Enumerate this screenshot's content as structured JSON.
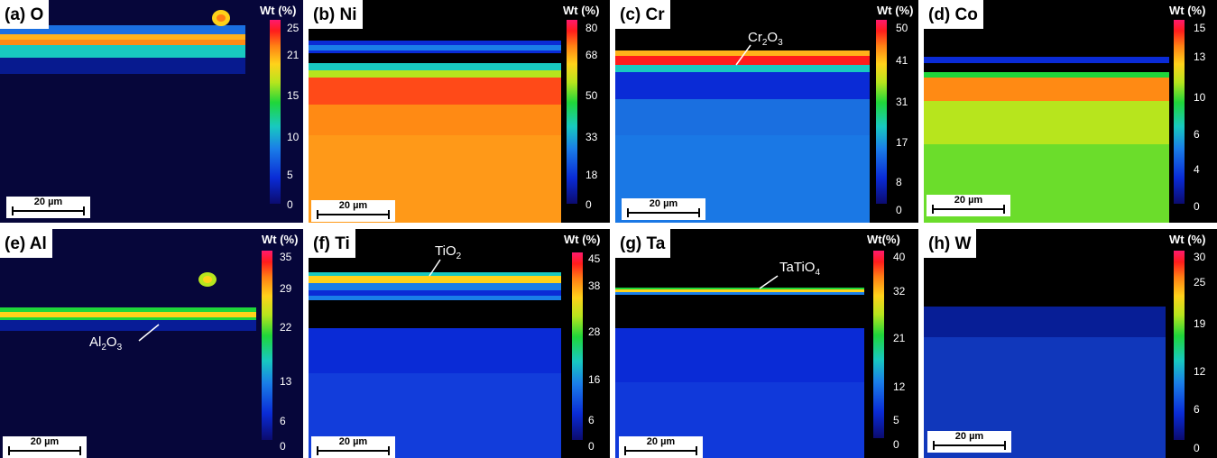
{
  "colorbar_title": "Wt (%)",
  "colorbar_title_g": "Wt(%)",
  "scale_label": "20 µm",
  "panels": [
    {
      "label": "(a) O",
      "ticks": [
        "25",
        "21",
        "15",
        "10",
        "5",
        "0"
      ]
    },
    {
      "label": "(b) Ni",
      "ticks": [
        "80",
        "68",
        "50",
        "33",
        "18",
        "0"
      ]
    },
    {
      "label": "(c) Cr",
      "ticks": [
        "50",
        "41",
        "31",
        "17",
        "8",
        "0"
      ]
    },
    {
      "label": "(d) Co",
      "ticks": [
        "15",
        "13",
        "10",
        "6",
        "4",
        "0"
      ]
    },
    {
      "label": "(e) Al",
      "ticks": [
        "35",
        "29",
        "22",
        "13",
        "6",
        "0"
      ]
    },
    {
      "label": "(f) Ti",
      "ticks": [
        "45",
        "38",
        "28",
        "16",
        "6",
        "0"
      ]
    },
    {
      "label": "(g) Ta",
      "ticks": [
        "40",
        "32",
        "21",
        "12",
        "5",
        "0"
      ]
    },
    {
      "label": "(h) W",
      "ticks": [
        "30",
        "25",
        "19",
        "12",
        "6",
        "0"
      ]
    }
  ],
  "annotations": {
    "cr": {
      "main": "Cr",
      "sub1": "2",
      "mid": "O",
      "sub2": "3"
    },
    "al": {
      "main": "Al",
      "sub1": "2",
      "mid": "O",
      "sub2": "3"
    },
    "ti": {
      "main": "TiO",
      "sub1": "2"
    },
    "ta": {
      "main": "TaTiO",
      "sub1": "4"
    }
  }
}
